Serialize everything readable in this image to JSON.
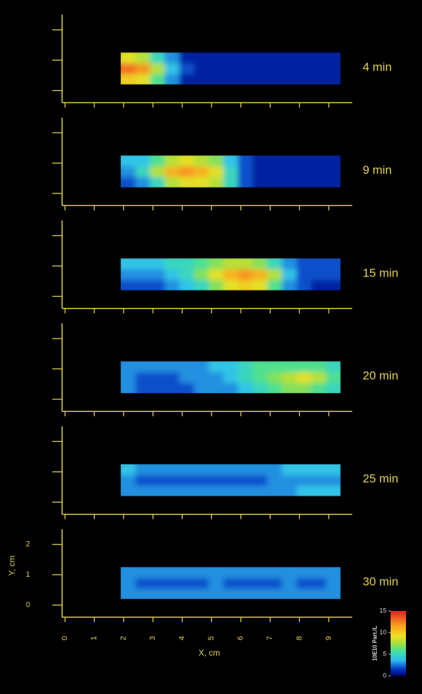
{
  "chart_data": [
    {
      "type": "heatmap",
      "label": "4 min",
      "xlim": [
        -0.1,
        9.8
      ],
      "ylim": [
        -0.4,
        2.5
      ],
      "xticks": [
        0,
        1,
        2,
        3,
        4,
        5,
        6,
        7,
        8,
        9
      ],
      "yticks": [
        0,
        1,
        2
      ],
      "tick_labels": false,
      "clim": [
        0,
        15
      ],
      "x": [
        2.15,
        2.65,
        3.15,
        3.65,
        4.15,
        4.65,
        5.15,
        5.65,
        6.15,
        6.65,
        7.15,
        7.65,
        8.15,
        8.65,
        9.15
      ],
      "y": [
        0.375,
        0.725,
        1.075
      ],
      "values": [
        [
          10,
          9,
          6,
          3,
          1,
          1,
          1,
          1,
          1,
          1,
          1,
          1,
          1,
          1,
          1
        ],
        [
          13,
          12,
          8,
          4,
          2,
          1,
          1,
          1,
          1,
          1,
          1,
          1,
          1,
          1,
          1
        ],
        [
          9,
          8,
          5,
          3,
          1,
          1,
          1,
          1,
          1,
          1,
          1,
          1,
          1,
          1,
          1
        ]
      ]
    },
    {
      "type": "heatmap",
      "label": "9 min",
      "xlim": [
        -0.1,
        9.8
      ],
      "ylim": [
        -0.4,
        2.5
      ],
      "xticks": [
        0,
        1,
        2,
        3,
        4,
        5,
        6,
        7,
        8,
        9
      ],
      "yticks": [
        0,
        1,
        2
      ],
      "tick_labels": false,
      "clim": [
        0,
        15
      ],
      "x": [
        2.15,
        2.65,
        3.15,
        3.65,
        4.15,
        4.65,
        5.15,
        5.65,
        6.15,
        6.65,
        7.15,
        7.65,
        8.15,
        8.65,
        9.15
      ],
      "y": [
        0.375,
        0.725,
        1.075
      ],
      "values": [
        [
          2,
          3,
          5,
          8,
          9,
          9,
          8,
          5,
          2,
          1,
          1,
          1,
          1,
          1,
          1
        ],
        [
          3,
          5,
          8,
          11,
          12,
          11,
          9,
          5,
          2,
          1,
          1,
          1,
          1,
          1,
          1
        ],
        [
          4,
          4,
          6,
          8,
          9,
          8,
          7,
          4,
          2,
          1,
          1,
          1,
          1,
          1,
          1
        ]
      ]
    },
    {
      "type": "heatmap",
      "label": "15 min",
      "xlim": [
        -0.1,
        9.8
      ],
      "ylim": [
        -0.4,
        2.5
      ],
      "xticks": [
        0,
        1,
        2,
        3,
        4,
        5,
        6,
        7,
        8,
        9
      ],
      "yticks": [
        0,
        1,
        2
      ],
      "tick_labels": false,
      "clim": [
        0,
        15
      ],
      "x": [
        2.15,
        2.65,
        3.15,
        3.65,
        4.15,
        4.65,
        5.15,
        5.65,
        6.15,
        6.65,
        7.15,
        7.65,
        8.15,
        8.65,
        9.15
      ],
      "y": [
        0.375,
        0.725,
        1.075
      ],
      "values": [
        [
          2,
          2,
          2,
          3,
          4,
          5,
          7,
          9,
          10,
          9,
          6,
          3,
          2,
          1,
          1
        ],
        [
          3,
          3,
          3,
          4,
          5,
          7,
          9,
          11,
          12,
          11,
          8,
          4,
          2,
          2,
          2
        ],
        [
          4,
          4,
          4,
          5,
          5,
          6,
          7,
          8,
          8,
          7,
          5,
          3,
          2,
          2,
          2
        ]
      ]
    },
    {
      "type": "heatmap",
      "label": "20 min",
      "xlim": [
        -0.1,
        9.8
      ],
      "ylim": [
        -0.4,
        2.5
      ],
      "xticks": [
        0,
        1,
        2,
        3,
        4,
        5,
        6,
        7,
        8,
        9
      ],
      "yticks": [
        0,
        1,
        2
      ],
      "tick_labels": false,
      "clim": [
        0,
        15
      ],
      "x": [
        2.15,
        2.65,
        3.15,
        3.65,
        4.15,
        4.65,
        5.15,
        5.65,
        6.15,
        6.65,
        7.15,
        7.65,
        8.15,
        8.65,
        9.15
      ],
      "y": [
        0.375,
        0.725,
        1.075
      ],
      "values": [
        [
          3,
          2,
          2,
          2,
          2,
          3,
          3,
          3,
          4,
          5,
          6,
          7,
          7,
          6,
          5
        ],
        [
          3,
          2,
          2,
          2,
          3,
          3,
          3,
          4,
          5,
          6,
          7,
          8,
          9,
          8,
          6
        ],
        [
          3,
          3,
          3,
          3,
          3,
          3,
          4,
          4,
          5,
          6,
          6,
          6,
          6,
          6,
          5
        ]
      ]
    },
    {
      "type": "heatmap",
      "label": "25 min",
      "xlim": [
        -0.1,
        9.8
      ],
      "ylim": [
        -0.4,
        2.5
      ],
      "xticks": [
        0,
        1,
        2,
        3,
        4,
        5,
        6,
        7,
        8,
        9
      ],
      "yticks": [
        0,
        1,
        2
      ],
      "tick_labels": false,
      "clim": [
        0,
        15
      ],
      "x": [
        2.15,
        2.65,
        3.15,
        3.65,
        4.15,
        4.65,
        5.15,
        5.65,
        6.15,
        6.65,
        7.15,
        7.65,
        8.15,
        8.65,
        9.15
      ],
      "y": [
        0.375,
        0.725,
        1.075
      ],
      "values": [
        [
          3,
          3,
          3,
          3,
          3,
          3,
          3,
          3,
          3,
          3,
          3,
          3,
          4,
          4,
          4
        ],
        [
          3,
          2,
          2,
          2,
          2,
          2,
          2,
          2,
          2,
          2,
          3,
          3,
          3,
          3,
          3
        ],
        [
          4,
          3,
          3,
          3,
          3,
          3,
          3,
          3,
          3,
          3,
          3,
          4,
          4,
          4,
          4
        ]
      ]
    },
    {
      "type": "heatmap",
      "label": "30 min",
      "xlim": [
        -0.1,
        9.8
      ],
      "ylim": [
        -0.4,
        2.5
      ],
      "xticks": [
        0,
        1,
        2,
        3,
        4,
        5,
        6,
        7,
        8,
        9
      ],
      "yticks": [
        0,
        1,
        2
      ],
      "tick_labels": true,
      "clim": [
        0,
        15
      ],
      "xlabel": "X, cm",
      "ylabel": "Y, cm",
      "x": [
        2.15,
        2.65,
        3.15,
        3.65,
        4.15,
        4.65,
        5.15,
        5.65,
        6.15,
        6.65,
        7.15,
        7.65,
        8.15,
        8.65,
        9.15
      ],
      "y": [
        0.375,
        0.725,
        1.075
      ],
      "values": [
        [
          3,
          3,
          3,
          3,
          3,
          3,
          3,
          3,
          3,
          3,
          3,
          3,
          3,
          3,
          3
        ],
        [
          3,
          2,
          2,
          2,
          2,
          2,
          3,
          2,
          2,
          2,
          2,
          3,
          2,
          2,
          3
        ],
        [
          3,
          3,
          3,
          3,
          3,
          3,
          3,
          3,
          3,
          3,
          3,
          3,
          3,
          3,
          3
        ]
      ],
      "colorbar": {
        "label": "10E10 Part./L",
        "ticks": [
          0,
          5,
          10,
          15
        ]
      }
    }
  ]
}
